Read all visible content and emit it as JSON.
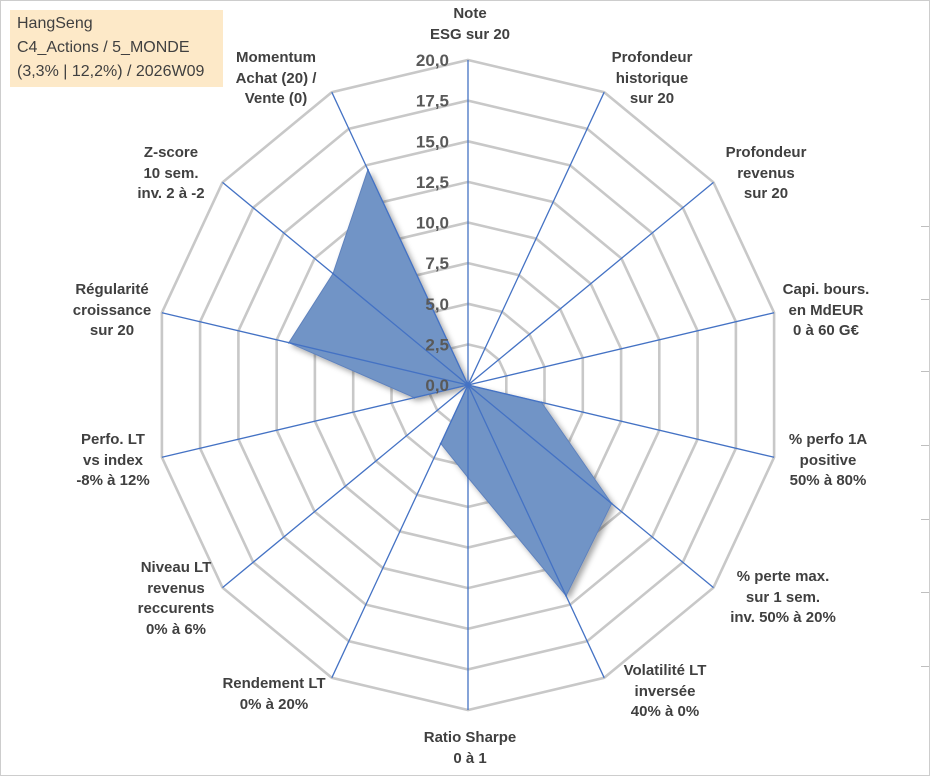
{
  "info_box": {
    "lines": [
      "HangSeng",
      "C4_Actions / 5_MONDE",
      "(3,3% | 12,2%) / 2026W09"
    ],
    "background": "#fde9c8"
  },
  "chart_data": {
    "type": "area",
    "polar": true,
    "categories": [
      [
        "Note",
        "ESG sur 20"
      ],
      [
        "Profondeur",
        "historique",
        "sur 20"
      ],
      [
        "Profondeur",
        "revenus",
        "sur 20"
      ],
      [
        "Capi. bours.",
        "en MdEUR",
        "0 à 60 G€"
      ],
      [
        "% perfo 1A",
        "positive",
        "50% à 80%"
      ],
      [
        "% perte max.",
        "sur 1 sem.",
        "inv. 50% à 20%"
      ],
      [
        "Volatilité LT",
        "inversée",
        "40% à 0%"
      ],
      [
        "Ratio Sharpe",
        "0 à 1"
      ],
      [
        "Rendement LT",
        "0% à 20%"
      ],
      [
        "Niveau LT",
        "revenus",
        "reccurents",
        "0% à 6%"
      ],
      [
        "Perfo. LT",
        "vs index",
        "-8% à 12%"
      ],
      [
        "Régularité",
        "croissance",
        "sur 20"
      ],
      [
        "Z-score",
        "10 sem.",
        "inv. 2 à -2"
      ],
      [
        "Momentum",
        "Achat (20) /",
        "Vente (0)"
      ]
    ],
    "values": [
      0,
      0,
      0,
      0,
      4.8,
      11.7,
      14.4,
      5.7,
      4.0,
      0,
      3.5,
      11.7,
      11.0,
      14.7
    ],
    "rlim": [
      0,
      20
    ],
    "tick_values": [
      0,
      2.5,
      5,
      7.5,
      10,
      12.5,
      15,
      17.5,
      20
    ],
    "tick_labels": [
      "0,0",
      "2,5",
      "5,0",
      "7,5",
      "10,0",
      "12,5",
      "15,0",
      "17,5",
      "20,0"
    ],
    "grid": true,
    "legend": "none",
    "colors": {
      "area_fill": "#7194c6",
      "area_edge": "#5f82bd",
      "axis_lines": "#4472c4",
      "grid_rings": "#c8c8c8",
      "tick_labels": "#595959"
    }
  }
}
